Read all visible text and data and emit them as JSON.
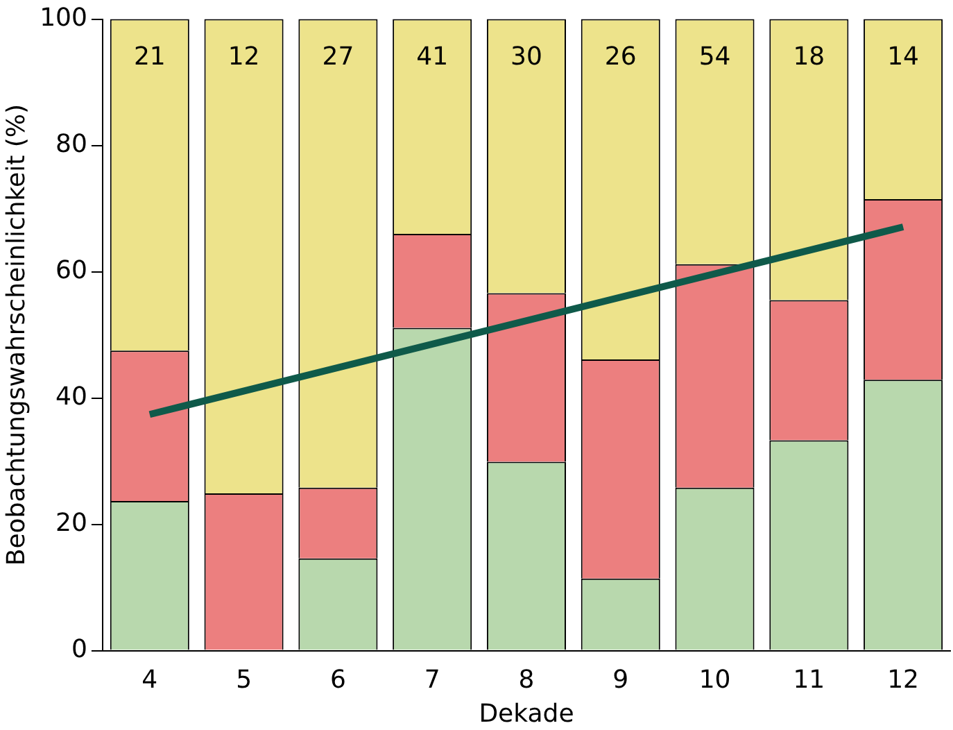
{
  "chart_data": {
    "type": "bar",
    "xlabel": "Dekade",
    "ylabel": "Beobachtungswahrscheinlichkeit (%)",
    "categories": [
      "4",
      "5",
      "6",
      "7",
      "8",
      "9",
      "10",
      "11",
      "12"
    ],
    "stacked": true,
    "ylim": [
      0,
      100
    ],
    "yticks": [
      0,
      20,
      40,
      60,
      80,
      100
    ],
    "grid": false,
    "legend": false,
    "series": [
      {
        "color": "#b8d8ad",
        "values": [
          23.7,
          0,
          14.6,
          51.1,
          29.9,
          11.4,
          25.8,
          33.3,
          42.9
        ]
      },
      {
        "color": "#ec7f7f",
        "values": [
          23.8,
          24.9,
          11.2,
          14.9,
          26.7,
          34.7,
          35.4,
          22.2,
          28.6
        ]
      },
      {
        "color": "#ede38b",
        "values": [
          52.5,
          75.1,
          74.2,
          34.0,
          43.4,
          53.9,
          38.8,
          44.5,
          28.5
        ]
      },
      {
        "type": "line",
        "color": "#0f5a4a",
        "x": [
          "4",
          "12"
        ],
        "values": [
          37.4,
          67.1
        ]
      }
    ],
    "annotations": [
      "21",
      "12",
      "27",
      "41",
      "30",
      "26",
      "54",
      "18",
      "14"
    ]
  }
}
